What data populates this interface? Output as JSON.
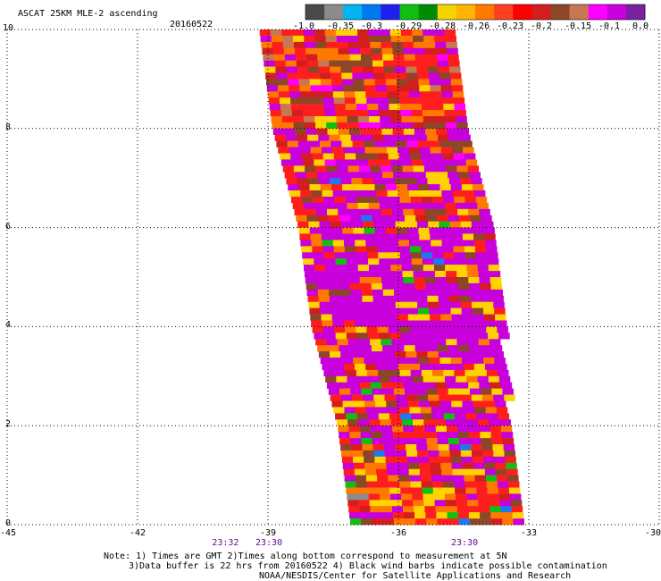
{
  "title": "ASCAT 25KM MLE-2 ascending",
  "date": "20160522",
  "colorbar": {
    "colors": [
      "#4a4a4a",
      "#8c8c8c",
      "#00b4f0",
      "#0078f0",
      "#1e1ef0",
      "#10c010",
      "#008c00",
      "#f5d400",
      "#ffb400",
      "#ff7800",
      "#ff4020",
      "#ff0000",
      "#d21e1e",
      "#8c4628",
      "#c87850",
      "#ff00ff",
      "#c800dc",
      "#7a20a0"
    ],
    "labels": [
      "-1.0",
      "-0.35",
      "-0.3",
      "-0.29",
      "-0.28",
      "-0.26",
      "-0.23",
      "-0.2",
      "-0.15",
      "-0.1",
      "0.0"
    ]
  },
  "chart_data": {
    "type": "heatmap",
    "title": "ASCAT 25KM MLE-2 ascending",
    "xlim": [
      -45,
      -30
    ],
    "ylim": [
      0,
      10
    ],
    "x_ticks": [
      "-45",
      "-42",
      "-39",
      "-36",
      "-33",
      "-30"
    ],
    "y_ticks": [
      "0",
      "2",
      "4",
      "6",
      "8",
      "10"
    ],
    "grid": true,
    "swath_edges": [
      {
        "y": 10,
        "x_left": -39.2,
        "x_right": -34.7
      },
      {
        "y": 8,
        "x_left": -38.9,
        "x_right": -34.5
      },
      {
        "y": 6,
        "x_left": -38.3,
        "x_right": -34.0
      },
      {
        "y": 4,
        "x_left": -38.0,
        "x_right": -33.7
      },
      {
        "y": 2,
        "x_left": -37.4,
        "x_right": -33.5
      },
      {
        "y": 0,
        "x_left": -37.1,
        "x_right": -33.2
      }
    ],
    "time_labels": [
      {
        "x": -40,
        "text": "23:32"
      },
      {
        "x": -39,
        "text": "23:30"
      },
      {
        "x": -34.5,
        "text": "23:30"
      }
    ]
  },
  "notes": [
    "Note: 1) Times are GMT 2)Times along bottom correspond to measurement at 5N",
    "3)Data buffer is 22 hrs from 20160522 4) Black wind barbs indicate possible contamination",
    "NOAA/NESDIS/Center for Satellite Applications and Research"
  ]
}
